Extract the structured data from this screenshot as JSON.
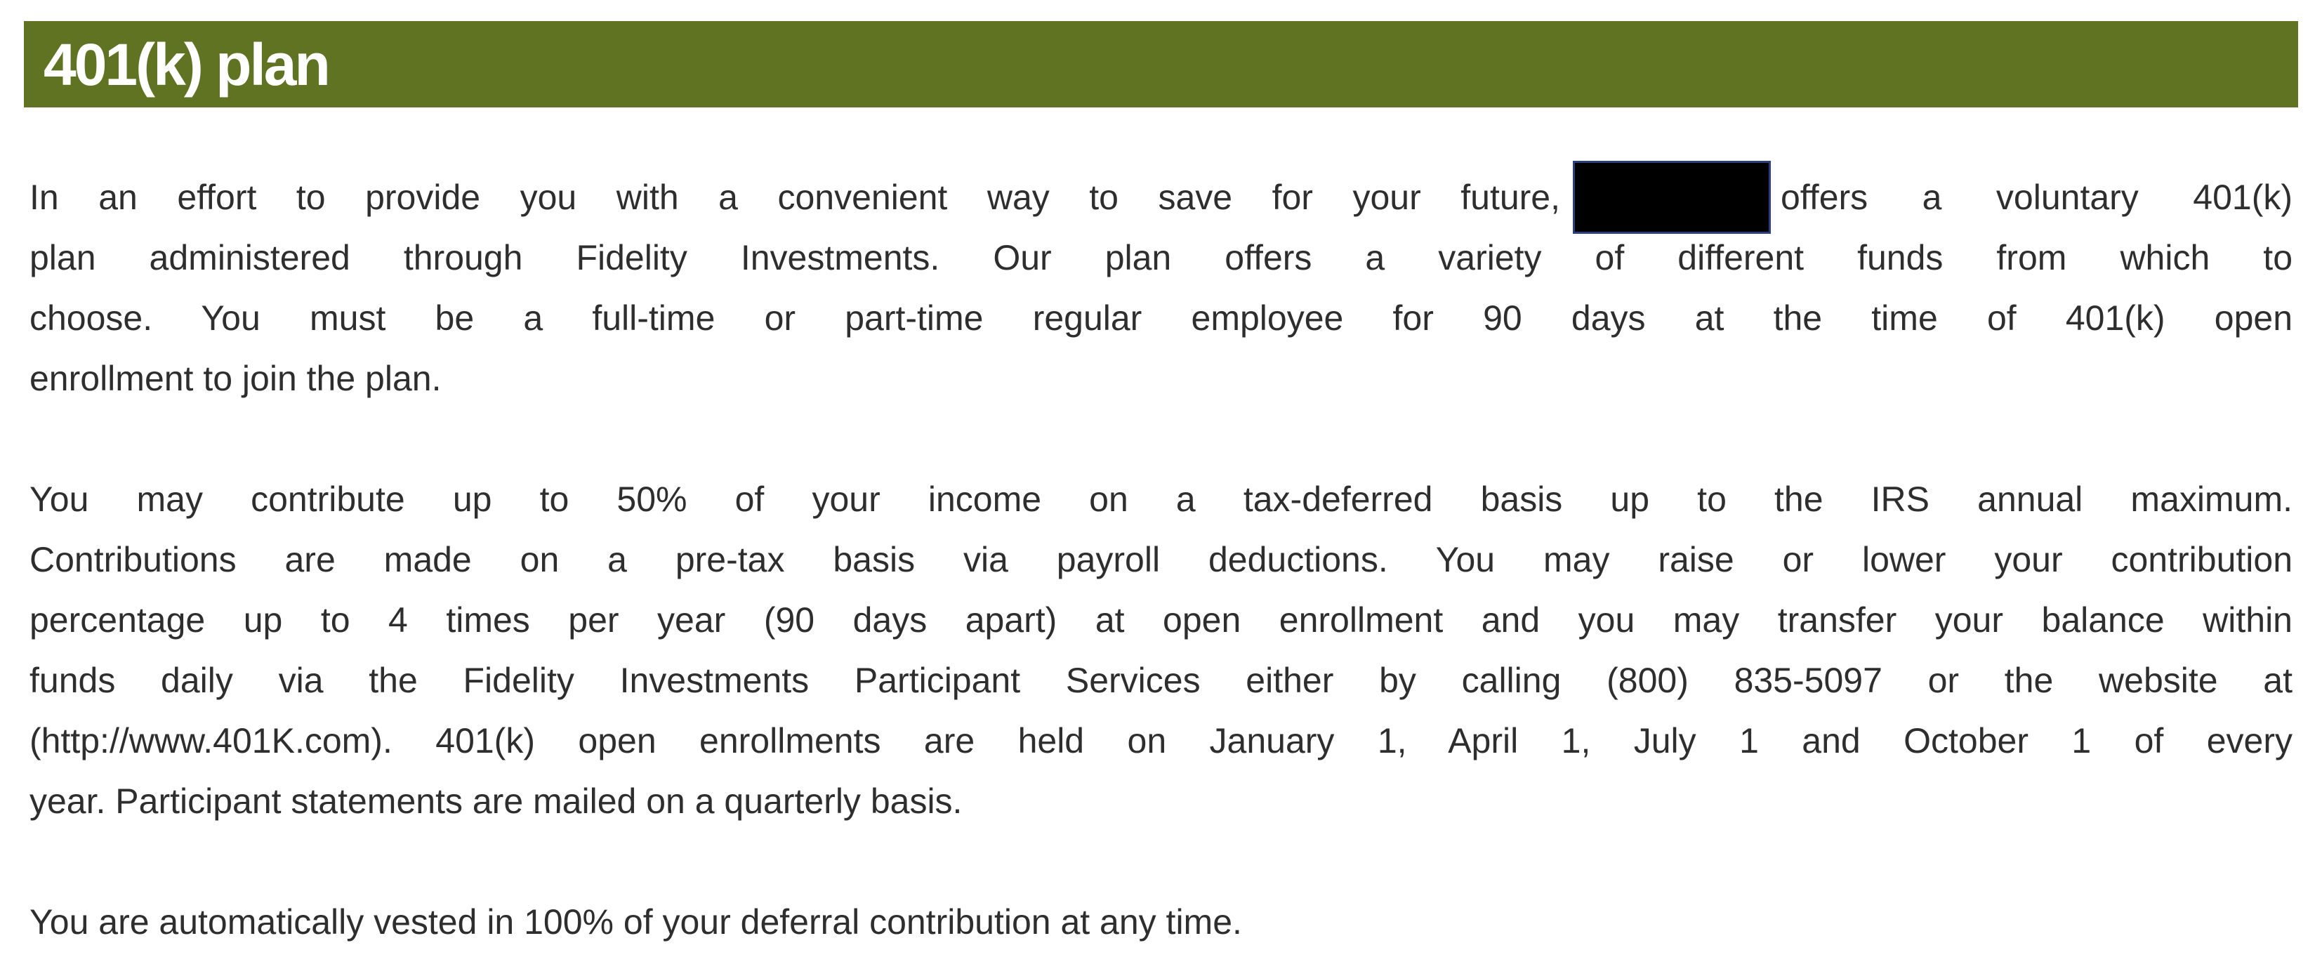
{
  "header": {
    "title": "401(k) plan",
    "color": "#5f7322"
  },
  "paragraphs": [
    {
      "first_line_before_redaction": "In an effort to provide you with a convenient way to save for your future,",
      "first_line_after_redaction": "offers a voluntary 401(k)",
      "lines": [
        "plan administered through Fidelity Investments.  Our plan offers a variety of different funds from which to",
        "choose.  You must be a full-time or part-time regular employee for 90 days at the time of 401(k) open",
        "enrollment to join the plan."
      ]
    },
    {
      "lines": [
        "You may contribute up to 50% of your income on a tax-deferred basis up to the IRS annual maximum.",
        "Contributions are made on a pre-tax basis via payroll deductions.  You may raise or lower your contribution",
        "percentage up to 4 times per year (90 days apart) at open enrollment and you may transfer your balance within",
        "funds daily via the Fidelity Investments Participant Services either by calling (800) 835-5097 or the website at",
        "(http://www.401K.com).  401(k) open enrollments are held on January 1, April 1, July 1 and October 1 of every",
        "year.  Participant statements are mailed on a quarterly basis."
      ]
    },
    {
      "lines": [
        "You are automatically vested in 100% of your deferral contribution at any time."
      ]
    }
  ]
}
